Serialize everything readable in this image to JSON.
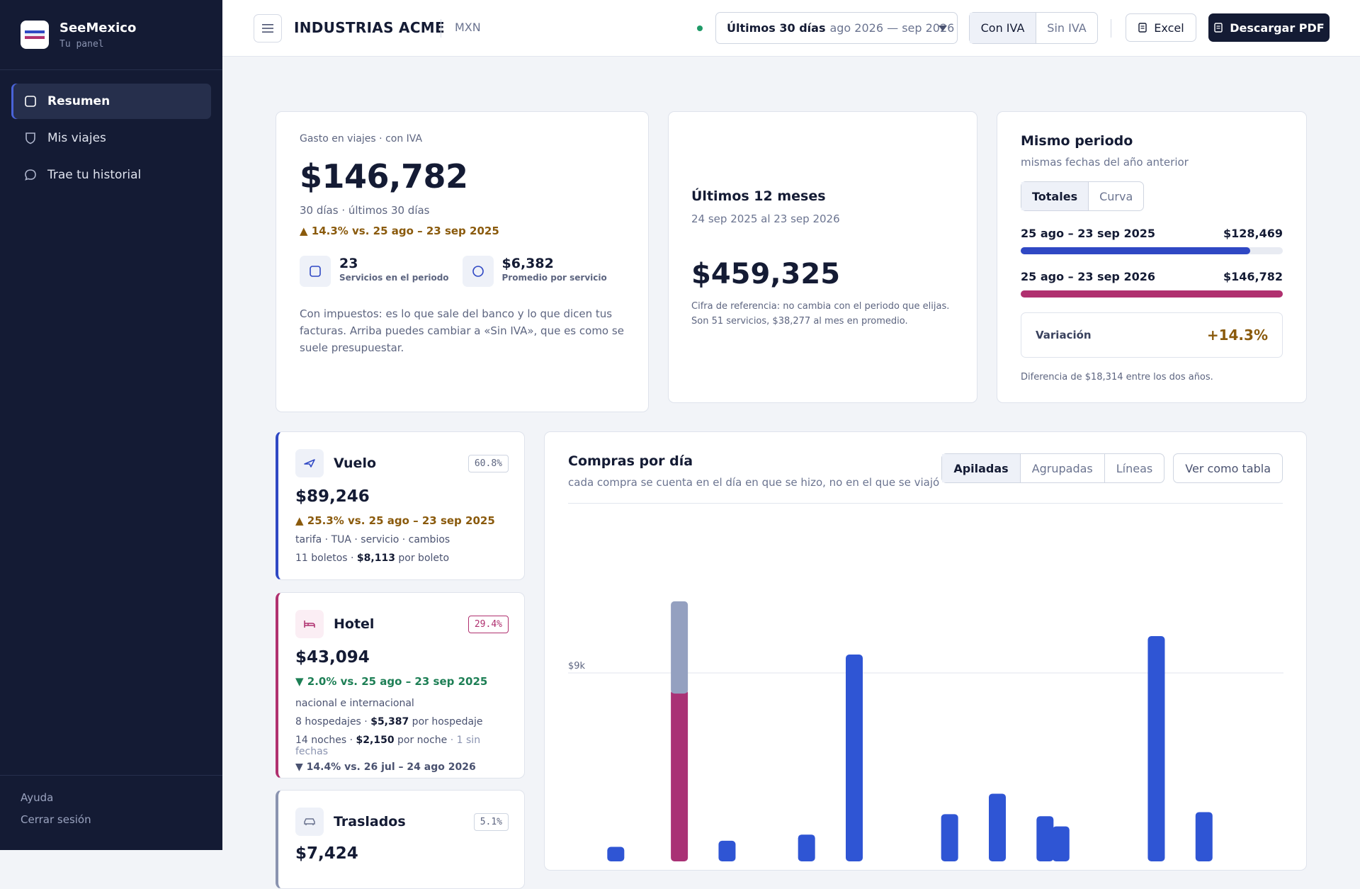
{
  "sidebar": {
    "brand_name": "SeeMexico",
    "brand_sub": "Tu panel",
    "items": [
      {
        "label": "Resumen",
        "icon": "square-icon"
      },
      {
        "label": "Mis viajes",
        "icon": "shield-icon"
      },
      {
        "label": "Trae tu historial",
        "icon": "chat-bubble-icon"
      }
    ],
    "footer": {
      "help": "Ayuda",
      "logout": "Cerrar sesión"
    }
  },
  "topbar": {
    "company": "INDUSTRIAS ACME",
    "currency": "MXN",
    "period_bold": "Últimos 30 días",
    "period_range": "ago 2026 — sep 2026",
    "iva_on": "Con IVA",
    "iva_off": "Sin IVA",
    "excel": "Excel",
    "pdf": "Descargar PDF",
    "status_color": "#1f9a67"
  },
  "spend": {
    "label": "Gasto en viajes · con IVA",
    "amount": "$146,782",
    "days": "30 días · últimos 30 días",
    "change": "▲ 14.3% vs. 25 ago – 23 sep 2025",
    "services_value": "23",
    "services_label": "Servicios en el periodo",
    "avg_value": "$6,382",
    "avg_label": "Promedio por servicio",
    "note": "Con impuestos: es lo que sale del banco y lo que dicen tus facturas. Arriba puedes cambiar a «Sin IVA», que es como se suele presupuestar."
  },
  "last12": {
    "title": "Últimos 12 meses",
    "range": "24 sep 2025 al 23 sep 2026",
    "amount": "$459,325",
    "ref": "Cifra de referencia: no cambia con el periodo que elijas. Son 51 servicios, $38,277 al mes en promedio."
  },
  "same_period": {
    "title": "Mismo periodo",
    "desc": "mismas fechas del año anterior",
    "tab_totals": "Totales",
    "tab_curve": "Curva",
    "prev_label": "25 ago – 23 sep 2025",
    "prev_value": "$128,469",
    "prev_fraction": 0.875,
    "prev_color": "#2f48c4",
    "curr_label": "25 ago – 23 sep 2026",
    "curr_value": "$146,782",
    "curr_fraction": 1.0,
    "curr_color": "#b0306f",
    "variation_label": "Variación",
    "variation_value": "+14.3%",
    "diff": "Diferencia de $18,314 entre los dos años."
  },
  "categories": [
    {
      "name": "Vuelo",
      "pct": "60.8%",
      "amount": "$89,246",
      "change": "▲ 25.3% vs. 25 ago – 23 sep 2025",
      "trend": "up",
      "color": "#2f48c4",
      "icon": "plane-icon",
      "line1": "tarifa · TUA · servicio · cambios",
      "line2_a": "11 boletos · ",
      "line2_b": "$8,113",
      "line2_c": " por boleto"
    },
    {
      "name": "Hotel",
      "pct": "29.4%",
      "amount": "$43,094",
      "change": "▼ 2.0% vs. 25 ago – 23 sep 2025",
      "trend": "down",
      "color": "#b0306f",
      "icon": "bed-icon",
      "line1": "nacional e internacional",
      "line2_a": "8 hospedajes · ",
      "line2_b": "$5,387",
      "line2_c": " por hospedaje",
      "line3_a": "14 noches · ",
      "line3_b": "$2,150",
      "line3_c": " por noche",
      "line3_d": " · 1 sin fechas",
      "line4": "▼ 14.4% vs. 26 jul – 24 ago 2026"
    },
    {
      "name": "Traslados",
      "pct": "5.1%",
      "amount": "$7,424",
      "color": "#8a93b0",
      "icon": "car-icon"
    }
  ],
  "chart": {
    "title": "Compras por día",
    "subtitle": "cada compra se cuenta en el día en que se hizo, no en el que se viajó",
    "modes": [
      "Apiladas",
      "Agrupadas",
      "Líneas"
    ],
    "active_mode": "Apiladas",
    "table_btn": "Ver como tabla"
  },
  "chart_data": {
    "type": "bar",
    "stacked": true,
    "ytick_labels": [
      "$9k"
    ],
    "ytick_values": [
      9000
    ],
    "ylim": [
      0,
      18000
    ],
    "grid": true,
    "colors": {
      "vuelo": "#2f55d4",
      "hotel": "#a93175",
      "traslados": "#94a0c0"
    },
    "bars": [
      {
        "day": 3,
        "vuelo": 500,
        "hotel": 0,
        "traslados": 0
      },
      {
        "day": 7,
        "vuelo": 0,
        "hotel": 8200,
        "traslados": 4300
      },
      {
        "day": 10,
        "vuelo": 800,
        "hotel": 0,
        "traslados": 0
      },
      {
        "day": 15,
        "vuelo": 1100,
        "hotel": 0,
        "traslados": 0
      },
      {
        "day": 18,
        "vuelo": 9900,
        "hotel": 0,
        "traslados": 0
      },
      {
        "day": 24,
        "vuelo": 2100,
        "hotel": 0,
        "traslados": 0
      },
      {
        "day": 27,
        "vuelo": 3100,
        "hotel": 0,
        "traslados": 0
      },
      {
        "day": 30,
        "vuelo": 2000,
        "hotel": 0,
        "traslados": 0
      },
      {
        "day": 31,
        "vuelo": 1500,
        "hotel": 0,
        "traslados": 0
      },
      {
        "day": 37,
        "vuelo": 10800,
        "hotel": 0,
        "traslados": 0
      },
      {
        "day": 40,
        "vuelo": 2200,
        "hotel": 0,
        "traslados": 0
      }
    ],
    "x_domain": [
      0,
      45
    ]
  }
}
